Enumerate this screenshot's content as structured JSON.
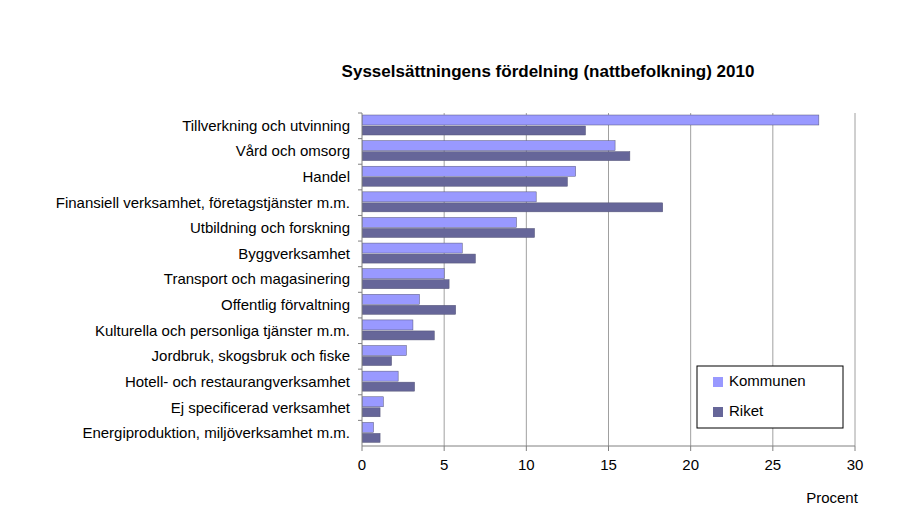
{
  "chart_data": {
    "type": "bar",
    "orientation": "horizontal",
    "title": "Sysselsättningens fördelning (nattbefolkning) 2010",
    "xlabel": "Procent",
    "categories": [
      "Tillverkning och utvinning",
      "Vård och omsorg",
      "Handel",
      "Finansiell verksamhet, företagstjänster m.m.",
      "Utbildning och forskning",
      "Byggverksamhet",
      "Transport och magasinering",
      "Offentlig förvaltning",
      "Kulturella och personliga tjänster m.m.",
      "Jordbruk, skogsbruk och fiske",
      "Hotell- och restaurangverksamhet",
      "Ej specificerad verksamhet",
      "Energiproduktion, miljöverksamhet m.m."
    ],
    "series": [
      {
        "name": "Kommunen",
        "color": "#9999ff",
        "values": [
          27.8,
          15.4,
          13.0,
          10.6,
          9.4,
          6.1,
          5.0,
          3.5,
          3.1,
          2.7,
          2.2,
          1.3,
          0.7
        ]
      },
      {
        "name": "Riket",
        "color": "#666699",
        "values": [
          13.6,
          16.3,
          12.5,
          18.3,
          10.5,
          6.9,
          5.3,
          5.7,
          4.4,
          1.8,
          3.2,
          1.1,
          1.1
        ]
      }
    ],
    "xlim": [
      0,
      30
    ],
    "xticks": [
      0,
      5,
      10,
      15,
      20,
      25,
      30
    ],
    "grid": true,
    "legend": "lower right"
  }
}
